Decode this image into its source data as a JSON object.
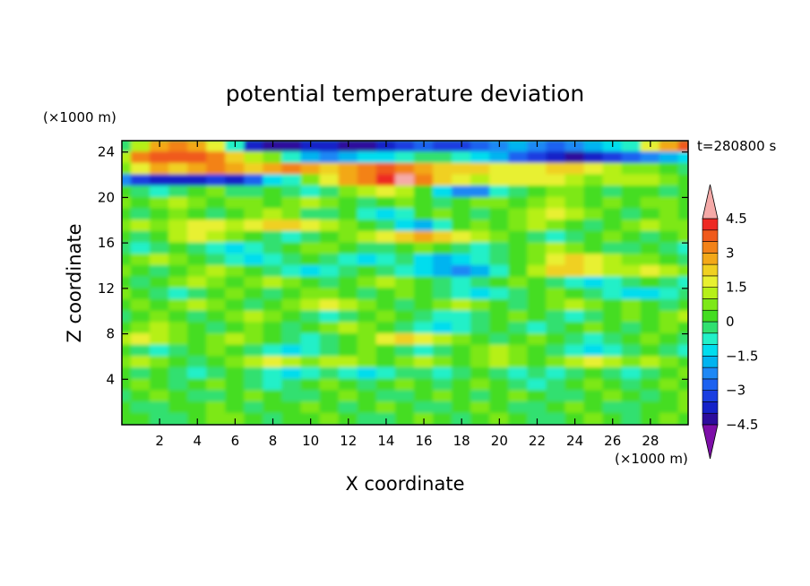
{
  "chart_data": {
    "type": "heatmap",
    "title": "potential temperature deviation",
    "xlabel": "X coordinate",
    "ylabel": "Z coordinate",
    "x_unit": "(×1000 m)",
    "y_unit": "(×1000 m)",
    "time_label": "t=280800 s",
    "xlim": [
      0,
      30
    ],
    "ylim": [
      0,
      25
    ],
    "x_ticks": [
      "2",
      "4",
      "6",
      "8",
      "10",
      "12",
      "14",
      "16",
      "18",
      "20",
      "22",
      "24",
      "26",
      "28"
    ],
    "y_ticks": [
      "4",
      "8",
      "12",
      "16",
      "20",
      "24"
    ],
    "colorbar": {
      "tick_labels": [
        "4.5",
        "3",
        "1.5",
        "0",
        "−1.5",
        "−3",
        "−4.5"
      ],
      "levels": [
        -4.5,
        -4,
        -3.5,
        -3,
        -2.5,
        -2,
        -1.5,
        -1,
        -0.5,
        0,
        0.5,
        1,
        1.5,
        2,
        2.5,
        3,
        3.5,
        4,
        4.5
      ],
      "colors": [
        "#7d0ea8",
        "#2d0c9c",
        "#1522c8",
        "#1a3ee0",
        "#1d62f0",
        "#1e88f5",
        "#00b4f0",
        "#00ddee",
        "#22f0c8",
        "#30e070",
        "#44dd22",
        "#7de818",
        "#b6f018",
        "#e8f030",
        "#f0d020",
        "#f3a818",
        "#f38218",
        "#f05a1c",
        "#ee2a24",
        "#f5aaa8"
      ]
    },
    "rows": [
      {
        "z": 24.5,
        "v": [
          -0.5,
          1.0,
          2.5,
          3.0,
          2.8,
          1.5,
          -1.0,
          -4.0,
          -4.5,
          -4.2,
          -4.0,
          -3.8,
          -4.2,
          -4.5,
          -4.0,
          -3.5,
          -3.0,
          -3.2,
          -3.5,
          -3.0,
          -2.5,
          -2.0,
          -2.5,
          -3.0,
          -2.5,
          -2.0,
          -1.5,
          -1.0,
          1.5,
          2.5,
          3.5
        ]
      },
      {
        "z": 23.5,
        "v": [
          1.0,
          3.0,
          3.5,
          3.8,
          3.5,
          3.0,
          2.0,
          1.0,
          0.5,
          -1.0,
          -2.0,
          -2.5,
          -2.0,
          -1.5,
          -1.5,
          -1.0,
          -0.5,
          -0.5,
          -1.0,
          -1.5,
          -2.0,
          -3.0,
          -3.5,
          -4.0,
          -4.2,
          -4.0,
          -3.5,
          -3.0,
          -2.5,
          -2.0,
          -1.5
        ]
      },
      {
        "z": 22.5,
        "v": [
          0.5,
          1.5,
          2.5,
          2.0,
          2.5,
          3.0,
          2.5,
          2.0,
          2.5,
          3.0,
          2.5,
          2.0,
          2.5,
          3.0,
          3.5,
          3.0,
          2.5,
          2.0,
          2.0,
          2.0,
          1.5,
          1.5,
          1.5,
          2.0,
          2.0,
          1.5,
          1.0,
          0.5,
          0.5,
          0.0,
          -0.5
        ]
      },
      {
        "z": 21.5,
        "v": [
          -2.5,
          -3.5,
          -4.0,
          -4.0,
          -3.8,
          -3.5,
          -4.0,
          -3.0,
          -1.5,
          -1.0,
          0.5,
          1.5,
          2.5,
          3.0,
          4.0,
          4.5,
          3.0,
          2.0,
          1.5,
          1.0,
          1.5,
          1.8,
          1.5,
          1.5,
          1.0,
          0.5,
          1.0,
          1.2,
          1.0,
          0.5,
          0.0
        ]
      },
      {
        "z": 20.5,
        "v": [
          0.0,
          -0.5,
          -1.0,
          -0.5,
          0.0,
          0.5,
          -0.5,
          -0.5,
          0.0,
          -0.5,
          -1.0,
          -0.5,
          0.5,
          1.0,
          1.5,
          1.0,
          0.0,
          -1.5,
          -2.5,
          -2.5,
          -1.0,
          -0.5,
          0.0,
          0.5,
          0.5,
          0.0,
          -0.5,
          0.0,
          0.0,
          -0.5,
          0.0
        ]
      },
      {
        "z": 19.5,
        "v": [
          0.5,
          0.0,
          0.5,
          1.0,
          0.5,
          0.0,
          0.5,
          0.5,
          0.0,
          0.5,
          1.0,
          0.5,
          0.0,
          -0.5,
          0.0,
          0.5,
          0.0,
          -0.5,
          0.0,
          0.5,
          0.5,
          0.0,
          0.5,
          1.0,
          0.5,
          0.0,
          0.5,
          0.0,
          0.5,
          0.5,
          0.0
        ]
      },
      {
        "z": 18.5,
        "v": [
          0.0,
          -0.5,
          0.0,
          0.5,
          0.0,
          -0.5,
          0.0,
          0.5,
          1.0,
          0.5,
          -0.5,
          -0.5,
          0.0,
          -1.0,
          -1.5,
          -1.0,
          0.0,
          0.5,
          0.0,
          -0.5,
          0.0,
          0.5,
          1.0,
          1.5,
          1.0,
          0.5,
          0.0,
          -0.5,
          0.0,
          0.5,
          0.0
        ]
      },
      {
        "z": 17.5,
        "v": [
          0.5,
          1.0,
          0.5,
          1.0,
          1.5,
          1.5,
          1.0,
          1.5,
          2.0,
          2.0,
          1.5,
          1.0,
          0.5,
          0.0,
          -0.5,
          -1.5,
          -2.0,
          -1.0,
          0.0,
          0.5,
          0.0,
          0.5,
          1.0,
          0.5,
          0.0,
          -0.5,
          0.0,
          0.5,
          1.0,
          0.5,
          0.5
        ]
      },
      {
        "z": 16.5,
        "v": [
          0.0,
          -0.5,
          0.0,
          1.0,
          1.5,
          1.0,
          0.5,
          0.0,
          -0.5,
          -1.0,
          -0.5,
          0.0,
          0.5,
          1.0,
          1.5,
          2.0,
          2.5,
          2.0,
          1.5,
          1.0,
          0.5,
          0.0,
          -0.5,
          -1.0,
          -0.5,
          0.0,
          0.5,
          0.0,
          -0.5,
          0.0,
          0.5
        ]
      },
      {
        "z": 15.5,
        "v": [
          -0.5,
          -1.0,
          -0.5,
          0.0,
          -0.5,
          -1.0,
          -1.5,
          -1.0,
          -0.5,
          0.0,
          0.5,
          0.5,
          0.0,
          -0.5,
          -0.5,
          0.0,
          0.5,
          0.0,
          -0.5,
          -1.0,
          -0.5,
          0.0,
          0.5,
          1.0,
          0.5,
          0.0,
          -0.5,
          -0.5,
          0.0,
          -0.5,
          -1.0
        ]
      },
      {
        "z": 14.5,
        "v": [
          0.0,
          0.5,
          1.0,
          0.5,
          0.0,
          -0.5,
          -1.0,
          -1.5,
          -1.0,
          -0.5,
          0.0,
          -0.5,
          -1.0,
          -1.5,
          -1.0,
          -0.5,
          -1.5,
          -2.0,
          -1.5,
          -1.0,
          -0.5,
          0.0,
          0.5,
          1.5,
          2.0,
          1.5,
          1.0,
          0.5,
          0.5,
          0.0,
          -0.5
        ]
      },
      {
        "z": 13.5,
        "v": [
          0.5,
          0.0,
          -0.5,
          0.0,
          0.5,
          1.0,
          0.5,
          0.0,
          -0.5,
          -1.0,
          -1.5,
          -1.0,
          -0.5,
          0.0,
          -0.5,
          -1.0,
          -1.5,
          -2.0,
          -2.5,
          -2.0,
          -1.0,
          0.0,
          1.0,
          2.0,
          2.0,
          1.5,
          1.0,
          1.0,
          1.5,
          1.0,
          0.5
        ]
      },
      {
        "z": 12.5,
        "v": [
          0.0,
          -0.5,
          0.0,
          0.5,
          1.0,
          0.5,
          0.0,
          0.5,
          1.0,
          0.5,
          0.0,
          -0.5,
          0.0,
          0.5,
          1.0,
          0.5,
          0.0,
          -0.5,
          -1.0,
          -0.5,
          0.0,
          0.5,
          0.0,
          -0.5,
          -1.0,
          -1.5,
          -1.0,
          -0.5,
          0.0,
          -0.5,
          -1.0
        ]
      },
      {
        "z": 11.5,
        "v": [
          0.5,
          0.0,
          -0.5,
          -1.0,
          -0.5,
          0.0,
          0.5,
          0.0,
          -0.5,
          0.0,
          0.5,
          0.5,
          0.0,
          -0.5,
          0.0,
          0.5,
          0.0,
          -0.5,
          -1.0,
          -1.5,
          -1.0,
          -0.5,
          0.0,
          0.5,
          0.0,
          -0.5,
          -1.0,
          -1.5,
          -1.5,
          -1.0,
          -0.5
        ]
      },
      {
        "z": 10.5,
        "v": [
          0.0,
          0.5,
          0.0,
          0.5,
          1.0,
          0.5,
          0.0,
          -0.5,
          0.0,
          0.5,
          1.0,
          1.5,
          1.0,
          0.5,
          0.0,
          -0.5,
          0.0,
          0.5,
          1.0,
          0.5,
          0.0,
          -0.5,
          0.0,
          0.5,
          1.0,
          0.5,
          0.0,
          0.5,
          0.0,
          -0.5,
          0.0
        ]
      },
      {
        "z": 9.5,
        "v": [
          -0.5,
          0.0,
          0.5,
          0.0,
          -0.5,
          0.0,
          0.5,
          1.0,
          0.5,
          0.0,
          -0.5,
          -1.0,
          -0.5,
          0.0,
          0.5,
          0.0,
          -0.5,
          -1.0,
          -1.0,
          -0.5,
          0.0,
          0.5,
          0.0,
          -0.5,
          -1.0,
          -0.5,
          0.0,
          0.5,
          0.0,
          0.5,
          1.0
        ]
      },
      {
        "z": 8.5,
        "v": [
          0.0,
          0.5,
          1.0,
          0.5,
          0.0,
          -0.5,
          0.0,
          0.5,
          0.0,
          -0.5,
          0.0,
          0.5,
          1.0,
          0.5,
          0.0,
          -0.5,
          -1.0,
          -1.5,
          -1.0,
          -0.5,
          0.0,
          -0.5,
          -1.0,
          -0.5,
          0.0,
          0.5,
          0.0,
          -0.5,
          0.0,
          0.5,
          0.0
        ]
      },
      {
        "z": 7.5,
        "v": [
          1.0,
          1.5,
          1.0,
          0.5,
          0.0,
          0.5,
          1.0,
          0.5,
          0.0,
          -0.5,
          -1.0,
          -0.5,
          0.0,
          0.5,
          1.5,
          2.0,
          1.5,
          1.0,
          0.5,
          0.0,
          -0.5,
          0.0,
          0.5,
          0.0,
          -0.5,
          -1.0,
          -0.5,
          0.0,
          0.5,
          0.0,
          -0.5
        ]
      },
      {
        "z": 6.5,
        "v": [
          0.0,
          -0.5,
          -1.0,
          -0.5,
          0.0,
          0.5,
          0.0,
          -0.5,
          -1.0,
          -1.5,
          -1.0,
          -0.5,
          0.0,
          0.5,
          0.0,
          -0.5,
          -1.0,
          -0.5,
          0.0,
          0.5,
          1.0,
          0.5,
          0.0,
          -0.5,
          -1.0,
          -1.5,
          -1.0,
          -0.5,
          0.0,
          -0.5,
          -1.0
        ]
      },
      {
        "z": 5.5,
        "v": [
          0.5,
          1.0,
          0.5,
          0.0,
          -0.5,
          0.0,
          0.5,
          1.0,
          1.5,
          1.0,
          0.5,
          1.0,
          1.0,
          0.5,
          0.0,
          0.5,
          1.0,
          0.5,
          0.0,
          0.5,
          1.0,
          0.5,
          0.0,
          0.5,
          1.0,
          1.5,
          1.0,
          0.5,
          1.0,
          0.5,
          0.0
        ]
      },
      {
        "z": 4.5,
        "v": [
          0.0,
          -0.5,
          0.0,
          -0.5,
          -1.0,
          -0.5,
          0.0,
          -0.5,
          -1.0,
          -1.5,
          -1.0,
          -0.5,
          -1.0,
          -1.5,
          -1.0,
          -0.5,
          -0.5,
          -1.0,
          -0.5,
          0.0,
          -0.5,
          -1.0,
          -0.5,
          -1.0,
          -0.5,
          0.0,
          -0.5,
          -1.0,
          -0.5,
          0.0,
          0.5
        ]
      },
      {
        "z": 3.5,
        "v": [
          0.0,
          0.5,
          0.0,
          -0.5,
          0.0,
          0.5,
          0.0,
          -0.5,
          -1.0,
          -0.5,
          0.0,
          0.5,
          0.0,
          -0.5,
          0.0,
          0.5,
          0.0,
          -0.5,
          0.0,
          0.5,
          0.0,
          -0.5,
          -1.0,
          -0.5,
          0.0,
          0.5,
          0.0,
          -0.5,
          0.0,
          0.5,
          0.0
        ]
      },
      {
        "z": 2.5,
        "v": [
          -0.5,
          0.0,
          0.5,
          0.0,
          -0.5,
          -0.5,
          0.0,
          0.5,
          0.0,
          -0.5,
          -0.5,
          0.0,
          0.5,
          0.0,
          -0.5,
          -0.5,
          0.0,
          0.5,
          0.0,
          -0.5,
          0.0,
          0.5,
          0.0,
          -0.5,
          -0.5,
          0.0,
          0.5,
          0.0,
          -0.5,
          0.0,
          0.5
        ]
      },
      {
        "z": 1.5,
        "v": [
          0.0,
          -0.5,
          -0.5,
          0.0,
          0.0,
          0.5,
          0.0,
          -0.5,
          0.0,
          0.0,
          0.5,
          0.0,
          -0.5,
          0.0,
          0.5,
          0.0,
          -0.5,
          -0.5,
          0.0,
          0.5,
          0.0,
          -0.5,
          -0.5,
          0.0,
          0.5,
          0.0,
          -0.5,
          -0.5,
          0.0,
          0.0,
          0.5
        ]
      },
      {
        "z": 0.5,
        "v": [
          0.0,
          0.0,
          -0.5,
          -0.5,
          0.0,
          0.5,
          0.5,
          0.0,
          -0.5,
          0.0,
          0.0,
          0.5,
          0.0,
          -0.5,
          -0.5,
          0.0,
          0.5,
          0.0,
          -0.5,
          0.0,
          0.5,
          0.0,
          -0.5,
          -0.5,
          0.0,
          0.5,
          0.0,
          -0.5,
          0.0,
          0.5,
          0.0
        ]
      }
    ]
  }
}
